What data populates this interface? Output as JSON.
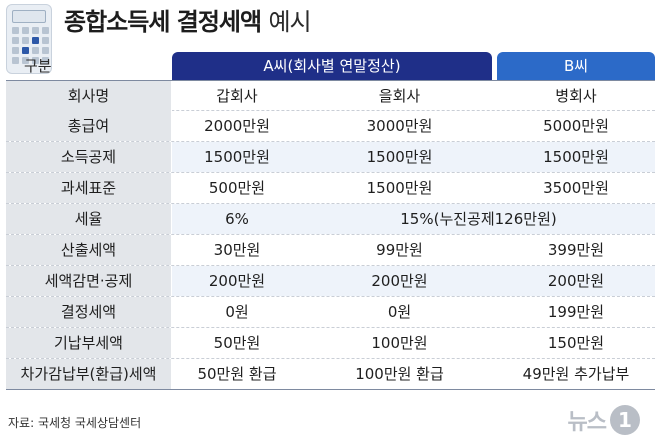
{
  "title_bold": "종합소득세 결정세액",
  "title_light": "예시",
  "header": {
    "label": "구분",
    "group_a": "A씨(회사별 연말정산)",
    "group_b": "B씨"
  },
  "rows": [
    {
      "label": "회사명",
      "c1": "갑회사",
      "c2": "을회사",
      "c3": "병회사"
    },
    {
      "label": "총급여",
      "c1": "2000만원",
      "c2": "3000만원",
      "c3": "5000만원"
    },
    {
      "label": "소득공제",
      "c1": "1500만원",
      "c2": "1500만원",
      "c3": "1500만원"
    },
    {
      "label": "과세표준",
      "c1": "500만원",
      "c2": "1500만원",
      "c3": "3500만원"
    },
    {
      "label": "세율",
      "c1": "6%",
      "span": "15%(누진공제126만원)"
    },
    {
      "label": "산출세액",
      "c1": "30만원",
      "c2": "99만원",
      "c3": "399만원"
    },
    {
      "label": "세액감면·공제",
      "c1": "200만원",
      "c2": "200만원",
      "c3": "200만원"
    },
    {
      "label": "결정세액",
      "c1": "0원",
      "c2": "0원",
      "c3": "199만원"
    },
    {
      "label": "기납부세액",
      "c1": "50만원",
      "c2": "100만원",
      "c3": "150만원"
    },
    {
      "label": "차가감납부(환급)세액",
      "c1": "50만원 환급",
      "c2": "100만원 환급",
      "c3": "49만원 추가납부"
    }
  ],
  "source": "자료: 국세청 국세상담센터",
  "logo": {
    "text": "뉴스",
    "mark": "1"
  },
  "colors": {
    "header_a": "#1f2f88",
    "header_b": "#2c6ac8",
    "label_bg": "#e3e6ea",
    "highlight_bg": "#eef3fa"
  }
}
